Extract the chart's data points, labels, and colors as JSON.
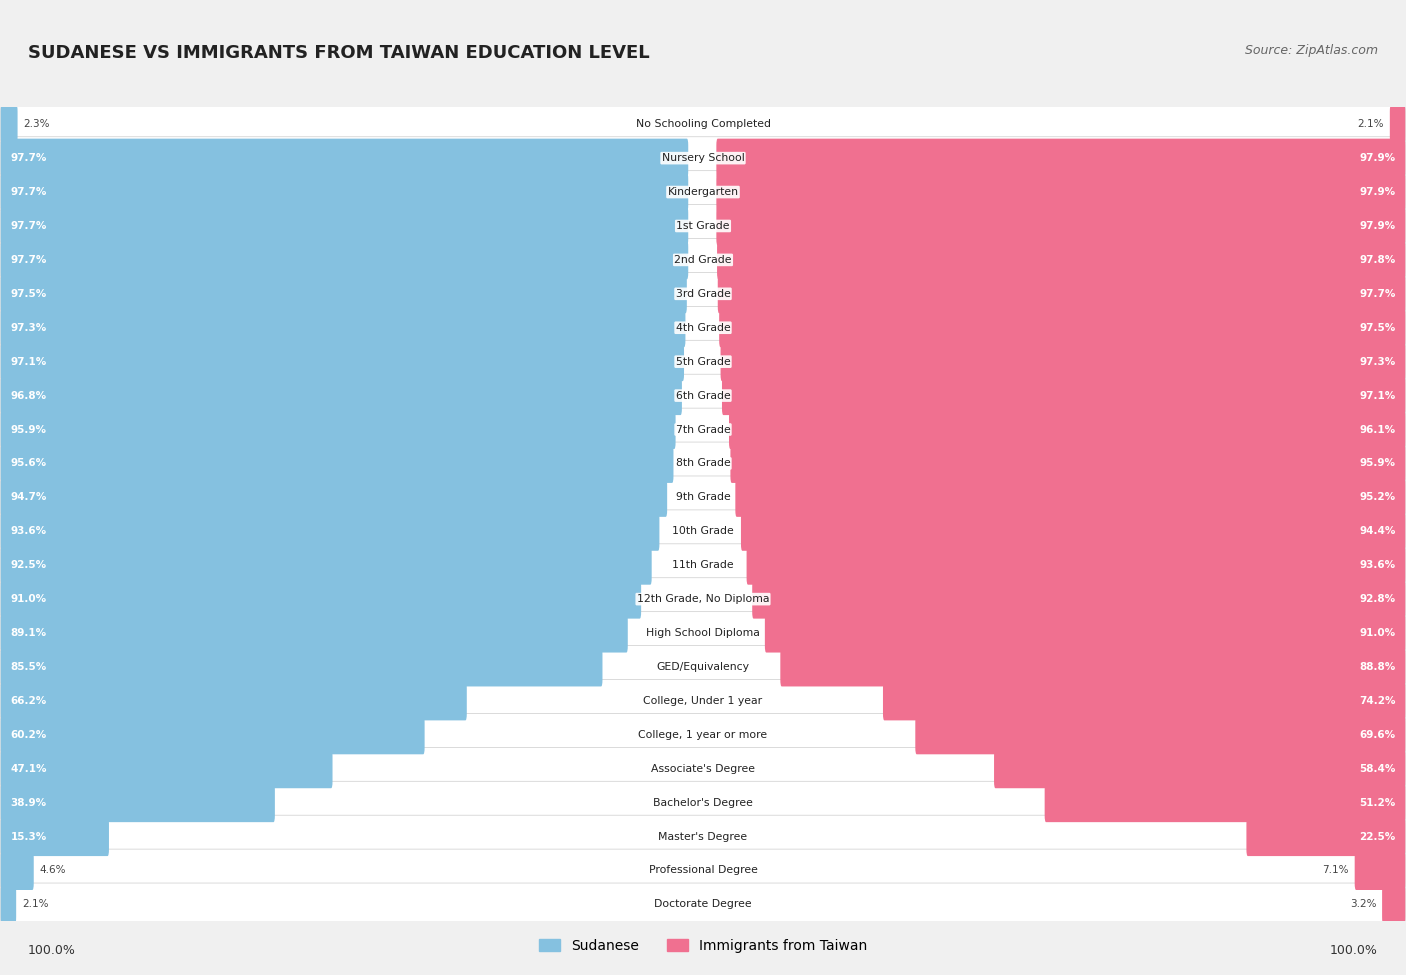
{
  "title": "SUDANESE VS IMMIGRANTS FROM TAIWAN EDUCATION LEVEL",
  "source": "Source: ZipAtlas.com",
  "categories": [
    "No Schooling Completed",
    "Nursery School",
    "Kindergarten",
    "1st Grade",
    "2nd Grade",
    "3rd Grade",
    "4th Grade",
    "5th Grade",
    "6th Grade",
    "7th Grade",
    "8th Grade",
    "9th Grade",
    "10th Grade",
    "11th Grade",
    "12th Grade, No Diploma",
    "High School Diploma",
    "GED/Equivalency",
    "College, Under 1 year",
    "College, 1 year or more",
    "Associate's Degree",
    "Bachelor's Degree",
    "Master's Degree",
    "Professional Degree",
    "Doctorate Degree"
  ],
  "sudanese": [
    2.3,
    97.7,
    97.7,
    97.7,
    97.7,
    97.5,
    97.3,
    97.1,
    96.8,
    95.9,
    95.6,
    94.7,
    93.6,
    92.5,
    91.0,
    89.1,
    85.5,
    66.2,
    60.2,
    47.1,
    38.9,
    15.3,
    4.6,
    2.1
  ],
  "taiwan": [
    2.1,
    97.9,
    97.9,
    97.9,
    97.8,
    97.7,
    97.5,
    97.3,
    97.1,
    96.1,
    95.9,
    95.2,
    94.4,
    93.6,
    92.8,
    91.0,
    88.8,
    74.2,
    69.6,
    58.4,
    51.2,
    22.5,
    7.1,
    3.2
  ],
  "blue_color": "#85C1E0",
  "pink_color": "#F07090",
  "bg_color": "#f0f0f0",
  "bar_bg_color": "#ffffff",
  "row_bg_color": "#e8e8e8",
  "legend_sudanese": "Sudanese",
  "legend_taiwan": "Immigrants from Taiwan",
  "axis_label_left": "100.0%",
  "axis_label_right": "100.0%"
}
